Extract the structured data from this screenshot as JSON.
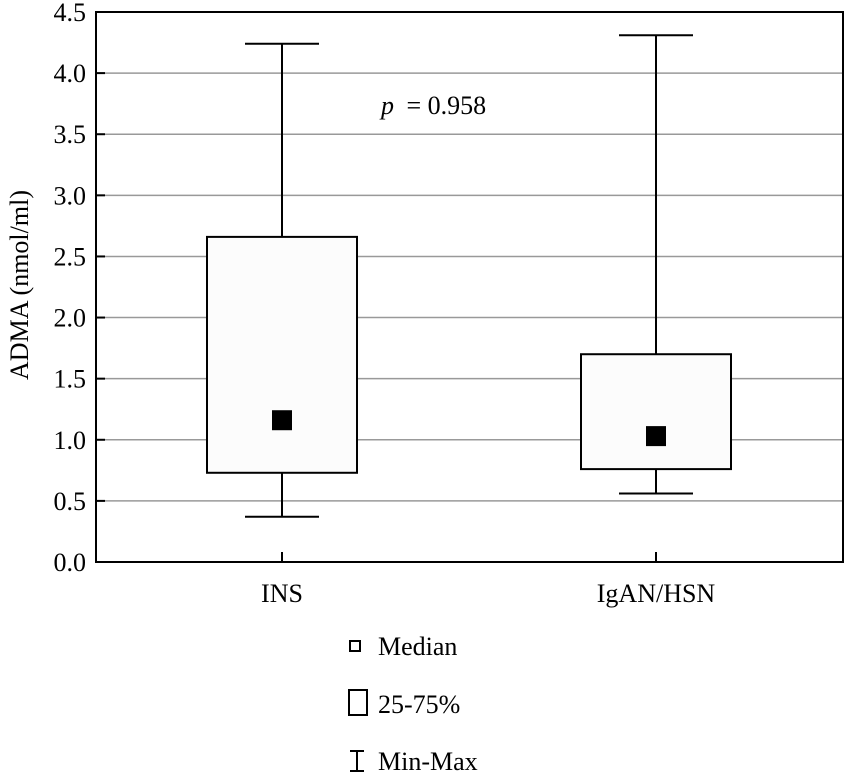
{
  "chart_data": {
    "type": "box",
    "ylabel": "ADMA (nmol/ml)",
    "ylim": [
      0,
      4.5
    ],
    "yticks": [
      "0.0",
      "0.5",
      "1.0",
      "1.5",
      "2.0",
      "2.5",
      "3.0",
      "3.5",
      "4.0",
      "4.5"
    ],
    "grid": true,
    "categories": [
      "INS",
      "IgAN/HSN"
    ],
    "boxes": [
      {
        "category": "INS",
        "min": 0.37,
        "q1": 0.73,
        "median": 1.16,
        "q3": 2.66,
        "max": 4.24
      },
      {
        "category": "IgAN/HSN",
        "min": 0.56,
        "q1": 0.76,
        "median": 1.03,
        "q3": 1.7,
        "max": 4.31
      }
    ],
    "annotation": {
      "p_symbol": "p",
      "p_value_text": "= 0.958"
    },
    "legend": {
      "position": "bottom",
      "items": [
        {
          "symbol": "median-square",
          "label": "Median"
        },
        {
          "symbol": "box",
          "label": "25-75%"
        },
        {
          "symbol": "whisker",
          "label": "Min-Max"
        }
      ]
    }
  }
}
